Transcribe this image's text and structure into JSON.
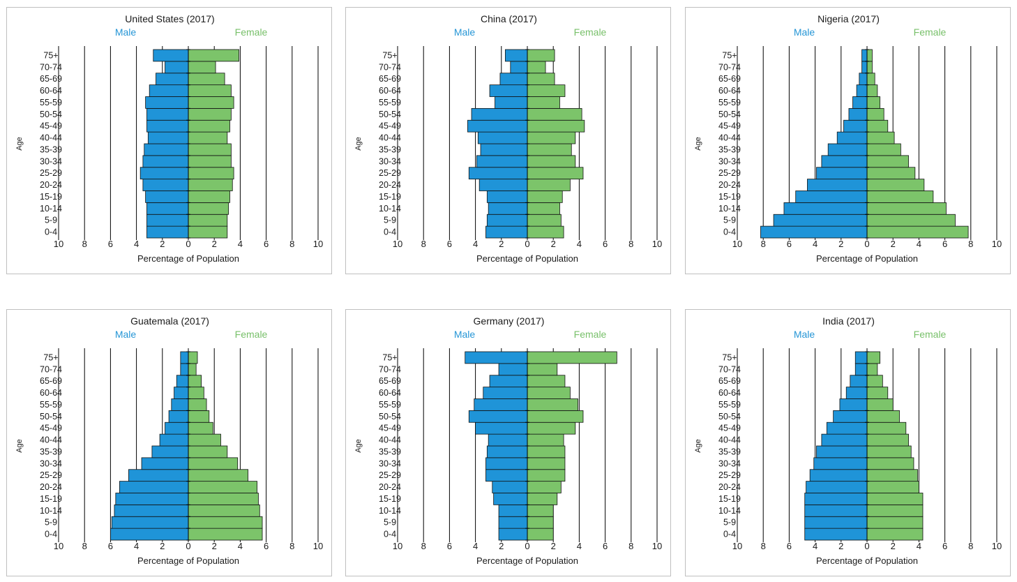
{
  "colors": {
    "male": "#1f94d8",
    "female": "#7cc46a",
    "male_label": "#2696d6",
    "female_label": "#78c06a",
    "text": "#1a1a1a"
  },
  "chart_data": [
    {
      "type": "bar",
      "title": "United States (2017)",
      "male_label": "Male",
      "female_label": "Female",
      "xlabel": "Percentage of Population",
      "ylabel": "Age",
      "xlim": [
        -10,
        10
      ],
      "x_ticks": [
        "10",
        "8",
        "6",
        "4",
        "2",
        "0",
        "2",
        "4",
        "6",
        "8",
        "10"
      ],
      "categories": [
        "0-4",
        "5-9",
        "10-14",
        "15-19",
        "20-24",
        "25-29",
        "30-34",
        "35-39",
        "40-44",
        "45-49",
        "50-54",
        "55-59",
        "60-64",
        "65-69",
        "70-74",
        "75+"
      ],
      "series": [
        {
          "name": "Male",
          "values": [
            3.2,
            3.2,
            3.2,
            3.3,
            3.5,
            3.7,
            3.5,
            3.4,
            3.1,
            3.2,
            3.2,
            3.3,
            3.0,
            2.5,
            1.8,
            2.7
          ]
        },
        {
          "name": "Female",
          "values": [
            3.0,
            3.0,
            3.1,
            3.2,
            3.4,
            3.5,
            3.3,
            3.3,
            3.0,
            3.2,
            3.3,
            3.5,
            3.3,
            2.8,
            2.1,
            3.9
          ]
        }
      ]
    },
    {
      "type": "bar",
      "title": "China (2017)",
      "male_label": "Male",
      "female_label": "Female",
      "xlabel": "Percentage of Population",
      "ylabel": "Age",
      "xlim": [
        -10,
        10
      ],
      "x_ticks": [
        "10",
        "8",
        "6",
        "4",
        "2",
        "0",
        "2",
        "4",
        "6",
        "8",
        "10"
      ],
      "categories": [
        "0-4",
        "5-9",
        "10-14",
        "15-19",
        "20-24",
        "25-29",
        "30-34",
        "35-39",
        "40-44",
        "45-49",
        "50-54",
        "55-59",
        "60-64",
        "65-69",
        "70-74",
        "75+"
      ],
      "series": [
        {
          "name": "Male",
          "values": [
            3.2,
            3.1,
            3.0,
            3.1,
            3.7,
            4.5,
            3.9,
            3.6,
            3.8,
            4.6,
            4.3,
            2.5,
            2.9,
            2.1,
            1.3,
            1.7
          ]
        },
        {
          "name": "Female",
          "values": [
            2.8,
            2.6,
            2.5,
            2.7,
            3.3,
            4.3,
            3.7,
            3.4,
            3.7,
            4.4,
            4.2,
            2.5,
            2.9,
            2.1,
            1.4,
            2.1
          ]
        }
      ]
    },
    {
      "type": "bar",
      "title": "Nigeria (2017)",
      "male_label": "Male",
      "female_label": "Female",
      "xlabel": "Percentage of Population",
      "ylabel": "Age",
      "xlim": [
        -10,
        10
      ],
      "x_ticks": [
        "10",
        "8",
        "6",
        "4",
        "2",
        "0",
        "2",
        "4",
        "6",
        "8",
        "10"
      ],
      "categories": [
        "0-4",
        "5-9",
        "10-14",
        "15-19",
        "20-24",
        "25-29",
        "30-34",
        "35-39",
        "40-44",
        "45-49",
        "50-54",
        "55-59",
        "60-64",
        "65-69",
        "70-74",
        "75+"
      ],
      "series": [
        {
          "name": "Male",
          "values": [
            8.2,
            7.2,
            6.4,
            5.5,
            4.6,
            3.9,
            3.5,
            3.0,
            2.3,
            1.8,
            1.4,
            1.1,
            0.8,
            0.6,
            0.4,
            0.4
          ]
        },
        {
          "name": "Female",
          "values": [
            7.8,
            6.8,
            6.1,
            5.1,
            4.4,
            3.7,
            3.2,
            2.6,
            2.1,
            1.6,
            1.3,
            1.0,
            0.8,
            0.6,
            0.4,
            0.4
          ]
        }
      ]
    },
    {
      "type": "bar",
      "title": "Guatemala (2017)",
      "male_label": "Male",
      "female_label": "Female",
      "xlabel": "Percentage of Population",
      "ylabel": "Age",
      "xlim": [
        -10,
        10
      ],
      "x_ticks": [
        "10",
        "8",
        "6",
        "4",
        "2",
        "0",
        "2",
        "4",
        "6",
        "8",
        "10"
      ],
      "categories": [
        "0-4",
        "5-9",
        "10-14",
        "15-19",
        "20-24",
        "25-29",
        "30-34",
        "35-39",
        "40-44",
        "45-49",
        "50-54",
        "55-59",
        "60-64",
        "65-69",
        "70-74",
        "75+"
      ],
      "series": [
        {
          "name": "Male",
          "values": [
            6.0,
            5.9,
            5.7,
            5.6,
            5.3,
            4.6,
            3.6,
            2.8,
            2.2,
            1.8,
            1.5,
            1.3,
            1.1,
            0.9,
            0.6,
            0.6
          ]
        },
        {
          "name": "Female",
          "values": [
            5.7,
            5.7,
            5.5,
            5.4,
            5.3,
            4.6,
            3.8,
            3.0,
            2.5,
            1.9,
            1.6,
            1.4,
            1.2,
            1.0,
            0.6,
            0.7
          ]
        }
      ]
    },
    {
      "type": "bar",
      "title": "Germany (2017)",
      "male_label": "Male",
      "female_label": "Female",
      "xlabel": "Percentage of Population",
      "ylabel": "Age",
      "xlim": [
        -10,
        10
      ],
      "x_ticks": [
        "10",
        "8",
        "6",
        "4",
        "2",
        "0",
        "2",
        "4",
        "6",
        "8",
        "10"
      ],
      "categories": [
        "0-4",
        "5-9",
        "10-14",
        "15-19",
        "20-24",
        "25-29",
        "30-34",
        "35-39",
        "40-44",
        "45-49",
        "50-54",
        "55-59",
        "60-64",
        "65-69",
        "70-74",
        "75+"
      ],
      "series": [
        {
          "name": "Male",
          "values": [
            2.2,
            2.2,
            2.2,
            2.6,
            2.7,
            3.2,
            3.2,
            3.1,
            3.0,
            4.0,
            4.5,
            4.1,
            3.4,
            2.9,
            2.2,
            4.8
          ]
        },
        {
          "name": "Female",
          "values": [
            2.0,
            2.0,
            2.0,
            2.3,
            2.6,
            2.9,
            2.9,
            2.9,
            2.8,
            3.7,
            4.3,
            3.9,
            3.3,
            2.9,
            2.3,
            6.9
          ]
        }
      ]
    },
    {
      "type": "bar",
      "title": "India (2017)",
      "male_label": "Male",
      "female_label": "Female",
      "xlabel": "Percentage of Population",
      "ylabel": "Age",
      "xlim": [
        -10,
        10
      ],
      "x_ticks": [
        "10",
        "8",
        "6",
        "4",
        "2",
        "0",
        "2",
        "4",
        "6",
        "8",
        "10"
      ],
      "categories": [
        "0-4",
        "5-9",
        "10-14",
        "15-19",
        "20-24",
        "25-29",
        "30-34",
        "35-39",
        "40-44",
        "45-49",
        "50-54",
        "55-59",
        "60-64",
        "65-69",
        "70-74",
        "75+"
      ],
      "series": [
        {
          "name": "Male",
          "values": [
            4.8,
            4.8,
            4.8,
            4.8,
            4.7,
            4.4,
            4.1,
            3.9,
            3.5,
            3.1,
            2.6,
            2.1,
            1.6,
            1.3,
            0.9,
            0.9
          ]
        },
        {
          "name": "Female",
          "values": [
            4.3,
            4.3,
            4.3,
            4.3,
            4.0,
            3.9,
            3.6,
            3.4,
            3.2,
            3.0,
            2.5,
            2.0,
            1.6,
            1.2,
            0.8,
            1.0
          ]
        }
      ]
    }
  ]
}
